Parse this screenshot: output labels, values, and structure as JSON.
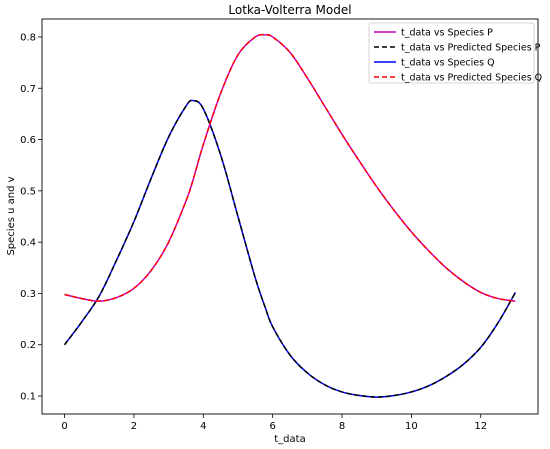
{
  "chart_data": {
    "type": "line",
    "title": "Lotka-Volterra Model",
    "xlabel": "t_data",
    "ylabel": "Species u and v",
    "xlim": [
      -0.65,
      13.65
    ],
    "ylim": [
      0.065,
      0.835
    ],
    "xticks": [
      0,
      2,
      4,
      6,
      8,
      10,
      12
    ],
    "yticks": [
      0.1,
      0.2,
      0.3,
      0.4,
      0.5,
      0.6,
      0.7,
      0.8
    ],
    "grid": false,
    "legend_position": "top-right",
    "x": [
      0,
      0.5,
      1,
      1.5,
      2,
      2.5,
      3,
      3.5,
      3.7,
      4,
      4.5,
      5,
      5.5,
      5.8,
      6,
      6.5,
      7,
      7.5,
      8,
      8.5,
      9,
      9.5,
      10,
      10.5,
      11,
      11.5,
      12,
      12.5,
      13
    ],
    "series": [
      {
        "name": "t_data vs Species P",
        "color": "#bf00bf",
        "style": "solid",
        "values": [
          0.298,
          0.29,
          0.285,
          0.292,
          0.31,
          0.345,
          0.4,
          0.48,
          0.52,
          0.59,
          0.69,
          0.765,
          0.8,
          0.804,
          0.8,
          0.77,
          0.72,
          0.665,
          0.61,
          0.558,
          0.508,
          0.462,
          0.42,
          0.383,
          0.35,
          0.323,
          0.302,
          0.29,
          0.285
        ]
      },
      {
        "name": "t_data vs Predicted Species P",
        "color": "#000000",
        "style": "dashed",
        "values": [
          0.2,
          0.245,
          0.295,
          0.365,
          0.44,
          0.525,
          0.605,
          0.665,
          0.676,
          0.66,
          0.57,
          0.45,
          0.33,
          0.27,
          0.235,
          0.18,
          0.145,
          0.122,
          0.108,
          0.101,
          0.098,
          0.101,
          0.108,
          0.12,
          0.138,
          0.162,
          0.195,
          0.243,
          0.302
        ]
      },
      {
        "name": "t_data vs Species Q",
        "color": "#0000ff",
        "style": "solid",
        "values": [
          0.2,
          0.245,
          0.295,
          0.365,
          0.44,
          0.525,
          0.605,
          0.665,
          0.676,
          0.66,
          0.57,
          0.45,
          0.33,
          0.27,
          0.235,
          0.18,
          0.145,
          0.122,
          0.108,
          0.101,
          0.098,
          0.101,
          0.108,
          0.12,
          0.138,
          0.162,
          0.195,
          0.243,
          0.302
        ]
      },
      {
        "name": "t_data vs Predicted Species Q",
        "color": "#ff0000",
        "style": "dashed",
        "values": [
          0.298,
          0.29,
          0.285,
          0.292,
          0.31,
          0.345,
          0.4,
          0.48,
          0.52,
          0.59,
          0.69,
          0.765,
          0.8,
          0.804,
          0.8,
          0.77,
          0.72,
          0.665,
          0.61,
          0.558,
          0.508,
          0.462,
          0.42,
          0.383,
          0.35,
          0.323,
          0.302,
          0.29,
          0.285
        ]
      }
    ],
    "draw_order": [
      2,
      1,
      0,
      3
    ]
  }
}
